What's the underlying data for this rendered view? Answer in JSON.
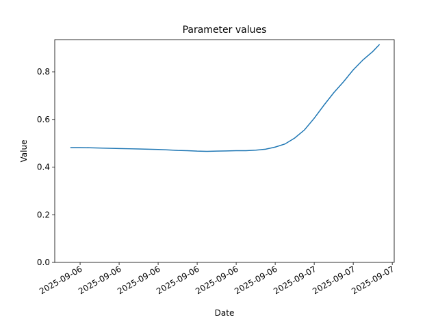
{
  "chart_data": {
    "type": "line",
    "title": "Parameter values",
    "x_label": "Date",
    "y_label": "Value",
    "x": [
      -1,
      0,
      1,
      2,
      3,
      4,
      5,
      6,
      7,
      8,
      9,
      10,
      11,
      12,
      13,
      14,
      15,
      16,
      17,
      18,
      19,
      20,
      21,
      22,
      23,
      24,
      25,
      26,
      27,
      28,
      29,
      30,
      30.7
    ],
    "series": [
      {
        "name": "Value",
        "color": "#1f77b4",
        "values": [
          0.482,
          0.482,
          0.481,
          0.48,
          0.479,
          0.478,
          0.477,
          0.476,
          0.475,
          0.474,
          0.472,
          0.47,
          0.469,
          0.467,
          0.466,
          0.467,
          0.468,
          0.469,
          0.469,
          0.471,
          0.475,
          0.484,
          0.497,
          0.522,
          0.556,
          0.605,
          0.66,
          0.712,
          0.758,
          0.808,
          0.85,
          0.885,
          0.915
        ]
      }
    ],
    "xlim": [
      -2.6,
      32.2
    ],
    "xticks": [
      {
        "value": 0,
        "label": "2025-09-06"
      },
      {
        "value": 4,
        "label": "2025-09-06"
      },
      {
        "value": 8,
        "label": "2025-09-06"
      },
      {
        "value": 12,
        "label": "2025-09-06"
      },
      {
        "value": 16,
        "label": "2025-09-06"
      },
      {
        "value": 20,
        "label": "2025-09-06"
      },
      {
        "value": 24,
        "label": "2025-09-07"
      },
      {
        "value": 28,
        "label": "2025-09-07"
      },
      {
        "value": 32,
        "label": "2025-09-07"
      }
    ],
    "ylim": [
      0,
      0.935
    ],
    "yticks": [
      {
        "value": 0,
        "label": "0.0"
      },
      {
        "value": 0.2,
        "label": "0.2"
      },
      {
        "value": 0.4,
        "label": "0.4"
      },
      {
        "value": 0.6,
        "label": "0.6"
      },
      {
        "value": 0.8,
        "label": "0.8"
      }
    ],
    "grid": false
  }
}
